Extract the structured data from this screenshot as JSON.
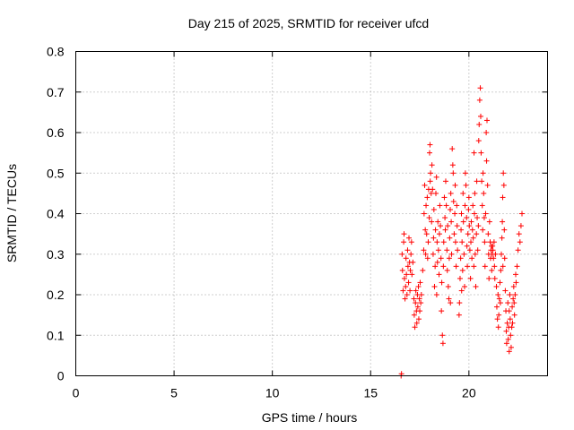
{
  "chart_data": {
    "type": "scatter",
    "title": "Day 215 of 2025, SRMTID for receiver ufcd",
    "xlabel": "GPS time / hours",
    "ylabel": "SRMTID / TECUs",
    "xlim": [
      0,
      24
    ],
    "ylim": [
      0,
      0.8
    ],
    "xticks": [
      0,
      5,
      10,
      15,
      20
    ],
    "yticks": [
      0,
      0.1,
      0.2,
      0.3,
      0.4,
      0.5,
      0.6,
      0.7,
      0.8
    ],
    "grid": true,
    "marker": "+",
    "series": [
      {
        "name": "ufcd",
        "color": "#ff0000",
        "points": [
          [
            16.55,
            0.0
          ],
          [
            16.57,
            0.005
          ],
          [
            16.6,
            0.3
          ],
          [
            16.62,
            0.26
          ],
          [
            16.65,
            0.21
          ],
          [
            16.68,
            0.33
          ],
          [
            16.7,
            0.35
          ],
          [
            16.72,
            0.24
          ],
          [
            16.75,
            0.19
          ],
          [
            16.78,
            0.22
          ],
          [
            16.8,
            0.29
          ],
          [
            16.82,
            0.25
          ],
          [
            16.85,
            0.2
          ],
          [
            16.88,
            0.31
          ],
          [
            16.9,
            0.27
          ],
          [
            16.93,
            0.23
          ],
          [
            16.95,
            0.34
          ],
          [
            16.98,
            0.28
          ],
          [
            17.0,
            0.21
          ],
          [
            17.02,
            0.26
          ],
          [
            17.05,
            0.3
          ],
          [
            17.08,
            0.33
          ],
          [
            17.1,
            0.25
          ],
          [
            17.2,
            0.19
          ],
          [
            17.22,
            0.15
          ],
          [
            17.25,
            0.12
          ],
          [
            17.28,
            0.18
          ],
          [
            17.3,
            0.21
          ],
          [
            17.33,
            0.16
          ],
          [
            17.35,
            0.13
          ],
          [
            17.38,
            0.2
          ],
          [
            17.4,
            0.17
          ],
          [
            17.43,
            0.22
          ],
          [
            17.45,
            0.14
          ],
          [
            17.48,
            0.19
          ],
          [
            17.5,
            0.16
          ],
          [
            17.52,
            0.23
          ],
          [
            17.55,
            0.18
          ],
          [
            17.58,
            0.2
          ],
          [
            17.65,
            0.26
          ],
          [
            17.7,
            0.31
          ],
          [
            17.72,
            0.4
          ],
          [
            17.75,
            0.47
          ],
          [
            17.78,
            0.36
          ],
          [
            17.8,
            0.3
          ],
          [
            17.82,
            0.42
          ],
          [
            17.85,
            0.35
          ],
          [
            17.88,
            0.44
          ],
          [
            17.9,
            0.29
          ],
          [
            17.93,
            0.33
          ],
          [
            17.95,
            0.46
          ],
          [
            17.98,
            0.39
          ],
          [
            18.0,
            0.55
          ],
          [
            18.02,
            0.57
          ],
          [
            18.05,
            0.5
          ],
          [
            18.08,
            0.45
          ],
          [
            18.1,
            0.38
          ],
          [
            18.12,
            0.52
          ],
          [
            18.15,
            0.46
          ],
          [
            18.18,
            0.3
          ],
          [
            18.2,
            0.34
          ],
          [
            18.22,
            0.41
          ],
          [
            18.25,
            0.22
          ],
          [
            18.28,
            0.27
          ],
          [
            18.3,
            0.36
          ],
          [
            18.32,
            0.45
          ],
          [
            18.35,
            0.49
          ],
          [
            18.38,
            0.33
          ],
          [
            18.4,
            0.28
          ],
          [
            18.42,
            0.38
          ],
          [
            18.45,
            0.31
          ],
          [
            18.48,
            0.25
          ],
          [
            18.5,
            0.35
          ],
          [
            18.52,
            0.42
          ],
          [
            18.55,
            0.37
          ],
          [
            18.58,
            0.29
          ],
          [
            18.6,
            0.16
          ],
          [
            18.62,
            0.23
          ],
          [
            18.65,
            0.1
          ],
          [
            18.68,
            0.08
          ],
          [
            18.7,
            0.27
          ],
          [
            18.72,
            0.33
          ],
          [
            18.75,
            0.44
          ],
          [
            18.78,
            0.39
          ],
          [
            18.8,
            0.36
          ],
          [
            18.82,
            0.48
          ],
          [
            18.85,
            0.42
          ],
          [
            18.88,
            0.31
          ],
          [
            18.9,
            0.26
          ],
          [
            18.92,
            0.37
          ],
          [
            18.95,
            0.22
          ],
          [
            18.98,
            0.19
          ],
          [
            19.0,
            0.29
          ],
          [
            19.02,
            0.34
          ],
          [
            19.05,
            0.41
          ],
          [
            19.08,
            0.45
          ],
          [
            19.1,
            0.38
          ],
          [
            19.12,
            0.3
          ],
          [
            19.15,
            0.56
          ],
          [
            19.18,
            0.52
          ],
          [
            19.2,
            0.5
          ],
          [
            19.22,
            0.43
          ],
          [
            19.25,
            0.35
          ],
          [
            19.28,
            0.4
          ],
          [
            19.3,
            0.47
          ],
          [
            19.32,
            0.33
          ],
          [
            19.35,
            0.27
          ],
          [
            19.38,
            0.42
          ],
          [
            19.4,
            0.37
          ],
          [
            19.42,
            0.31
          ],
          [
            19.5,
            0.15
          ],
          [
            19.52,
            0.18
          ],
          [
            19.55,
            0.24
          ],
          [
            19.58,
            0.29
          ],
          [
            19.6,
            0.36
          ],
          [
            19.62,
            0.4
          ],
          [
            19.65,
            0.33
          ],
          [
            19.68,
            0.26
          ],
          [
            19.7,
            0.45
          ],
          [
            19.72,
            0.38
          ],
          [
            19.75,
            0.3
          ],
          [
            19.78,
            0.22
          ],
          [
            19.8,
            0.42
          ],
          [
            19.82,
            0.5
          ],
          [
            19.85,
            0.47
          ],
          [
            19.88,
            0.39
          ],
          [
            19.9,
            0.32
          ],
          [
            19.92,
            0.27
          ],
          [
            19.95,
            0.35
          ],
          [
            19.98,
            0.41
          ],
          [
            20.0,
            0.44
          ],
          [
            20.02,
            0.37
          ],
          [
            20.05,
            0.31
          ],
          [
            20.08,
            0.24
          ],
          [
            20.1,
            0.33
          ],
          [
            20.12,
            0.38
          ],
          [
            20.15,
            0.29
          ],
          [
            20.18,
            0.36
          ],
          [
            20.2,
            0.42
          ],
          [
            20.22,
            0.34
          ],
          [
            20.25,
            0.27
          ],
          [
            20.28,
            0.4
          ],
          [
            20.3,
            0.45
          ],
          [
            20.32,
            0.3
          ],
          [
            20.35,
            0.22
          ],
          [
            20.38,
            0.35
          ],
          [
            20.4,
            0.48
          ],
          [
            20.42,
            0.39
          ],
          [
            20.45,
            0.31
          ],
          [
            20.48,
            0.37
          ],
          [
            20.5,
            0.58
          ],
          [
            20.52,
            0.62
          ],
          [
            20.55,
            0.68
          ],
          [
            20.58,
            0.71
          ],
          [
            20.6,
            0.64
          ],
          [
            20.62,
            0.55
          ],
          [
            20.65,
            0.48
          ],
          [
            20.68,
            0.42
          ],
          [
            20.7,
            0.36
          ],
          [
            20.72,
            0.5
          ],
          [
            20.75,
            0.45
          ],
          [
            20.78,
            0.39
          ],
          [
            20.8,
            0.33
          ],
          [
            20.82,
            0.27
          ],
          [
            20.85,
            0.4
          ],
          [
            20.88,
            0.6
          ],
          [
            20.9,
            0.53
          ],
          [
            20.92,
            0.63
          ],
          [
            20.95,
            0.47
          ],
          [
            20.98,
            0.35
          ],
          [
            21.0,
            0.3
          ],
          [
            21.02,
            0.24
          ],
          [
            21.05,
            0.38
          ],
          [
            21.08,
            0.33
          ],
          [
            21.1,
            0.29
          ],
          [
            21.12,
            0.31
          ],
          [
            21.15,
            0.32
          ],
          [
            21.18,
            0.3
          ],
          [
            21.2,
            0.32
          ],
          [
            21.22,
            0.31
          ],
          [
            21.25,
            0.29
          ],
          [
            21.28,
            0.33
          ],
          [
            21.3,
            0.27
          ],
          [
            21.32,
            0.24
          ],
          [
            21.35,
            0.3
          ],
          [
            21.4,
            0.22
          ],
          [
            21.42,
            0.17
          ],
          [
            21.45,
            0.14
          ],
          [
            21.48,
            0.2
          ],
          [
            21.5,
            0.12
          ],
          [
            21.52,
            0.15
          ],
          [
            21.55,
            0.19
          ],
          [
            21.58,
            0.23
          ],
          [
            21.6,
            0.18
          ],
          [
            21.62,
            0.26
          ],
          [
            21.65,
            0.3
          ],
          [
            21.68,
            0.34
          ],
          [
            21.7,
            0.38
          ],
          [
            21.72,
            0.44
          ],
          [
            21.75,
            0.5
          ],
          [
            21.78,
            0.47
          ],
          [
            21.8,
            0.36
          ],
          [
            21.82,
            0.29
          ],
          [
            21.85,
            0.21
          ],
          [
            21.88,
            0.16
          ],
          [
            21.9,
            0.11
          ],
          [
            21.92,
            0.08
          ],
          [
            21.95,
            0.13
          ],
          [
            21.98,
            0.18
          ],
          [
            22.0,
            0.09
          ],
          [
            22.02,
            0.12
          ],
          [
            22.05,
            0.16
          ],
          [
            22.08,
            0.2
          ],
          [
            22.1,
            0.14
          ],
          [
            22.12,
            0.1
          ],
          [
            22.15,
            0.07
          ],
          [
            22.18,
            0.12
          ],
          [
            22.2,
            0.17
          ],
          [
            22.22,
            0.13
          ],
          [
            22.25,
            0.19
          ],
          [
            22.28,
            0.22
          ],
          [
            22.3,
            0.18
          ],
          [
            22.32,
            0.15
          ],
          [
            22.35,
            0.2
          ],
          [
            22.38,
            0.25
          ],
          [
            22.4,
            0.23
          ],
          [
            22.45,
            0.27
          ],
          [
            22.5,
            0.31
          ],
          [
            22.55,
            0.35
          ],
          [
            22.6,
            0.33
          ],
          [
            22.65,
            0.37
          ],
          [
            22.7,
            0.4
          ],
          [
            17.15,
            0.28
          ],
          [
            18.03,
            0.48
          ],
          [
            18.36,
            0.2
          ],
          [
            19.06,
            0.18
          ],
          [
            19.63,
            0.21
          ],
          [
            20.26,
            0.55
          ],
          [
            21.16,
            0.26
          ],
          [
            21.73,
            0.27
          ],
          [
            22.05,
            0.06
          ]
        ]
      }
    ]
  }
}
